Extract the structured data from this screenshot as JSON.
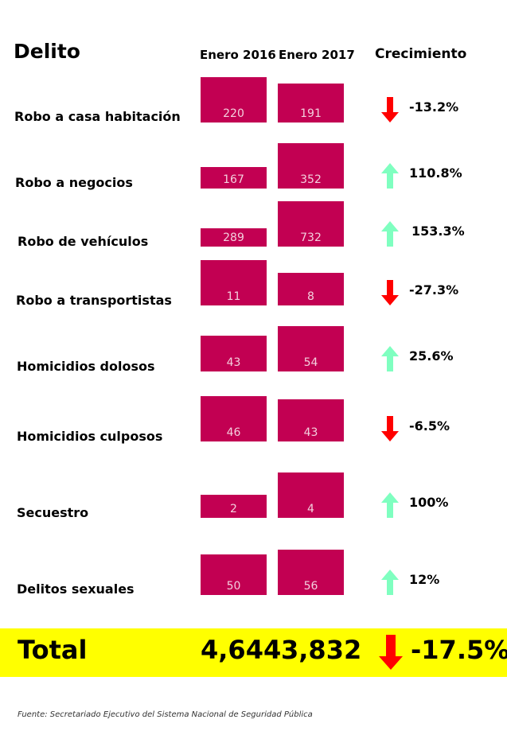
{
  "headers": {
    "delito": "Delito",
    "enero_2016": "Enero 2016",
    "enero_2017": "Enero 2017",
    "crecimiento": "Crecimiento"
  },
  "colors": {
    "bar": "#c20052",
    "up_arrow": "#7fffc0",
    "down_arrow": "#ff0000",
    "total_band": "#ffff00"
  },
  "chart_data": {
    "type": "bar",
    "categories": [
      "Robo a casa habitación",
      "Robo a negocios",
      "Robo de vehículos",
      "Robo a transportistas",
      "Homicidios dolosos",
      "Homicidios culposos",
      "Secuestro",
      "Delitos sexuales"
    ],
    "series": [
      {
        "name": "Enero 2016",
        "values": [
          220,
          167,
          289,
          11,
          43,
          46,
          2,
          50
        ]
      },
      {
        "name": "Enero 2017",
        "values": [
          191,
          352,
          732,
          8,
          54,
          43,
          4,
          56
        ]
      }
    ],
    "growth": [
      "-13.2%",
      "110.8%",
      "153.3%",
      "-27.3%",
      "25.6%",
      "-6.5%",
      "100%",
      "12%"
    ],
    "direction": [
      "down",
      "up",
      "up",
      "down",
      "up",
      "down",
      "up",
      "up"
    ]
  },
  "total": {
    "label": "Total",
    "enero_2016": "4,644",
    "enero_2017": "3,832",
    "growth": "-17.5%",
    "direction": "down"
  },
  "source": "Fuente: Secretariado Ejecutivo del Sistema Nacional de Seguridad Pública"
}
